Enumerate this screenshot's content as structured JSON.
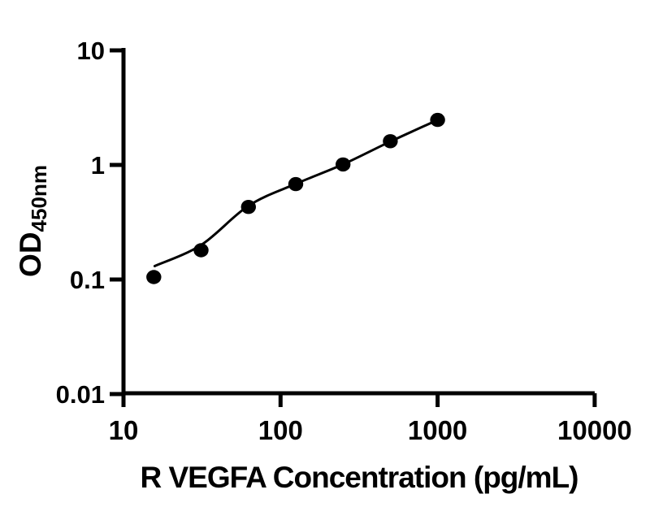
{
  "page": {
    "background": "#ffffff"
  },
  "chart_data": {
    "type": "scatter",
    "title": "",
    "xlabel": "R VEGFA Concentration (pg/mL)",
    "ylabel": "OD450nm",
    "ylabel_main": "OD",
    "ylabel_sub": "450nm",
    "x_scale": "log",
    "y_scale": "log",
    "xlim": [
      10,
      10000
    ],
    "ylim": [
      0.01,
      10
    ],
    "x_ticks": {
      "values": [
        10,
        100,
        1000,
        10000
      ],
      "labels": [
        "10",
        "100",
        "1000",
        "10000"
      ]
    },
    "y_ticks": {
      "values": [
        10,
        1,
        0.1,
        0.01
      ],
      "labels": [
        "10",
        "1",
        "0.1",
        "0.01"
      ]
    },
    "grid": false,
    "legend": null,
    "axis_color": "#000000",
    "text_color": "#000000",
    "background": "#ffffff",
    "series": [
      {
        "name": "standard-points",
        "marker": "circle",
        "color": "#000000",
        "points": [
          {
            "x": 15.6,
            "y": 0.105
          },
          {
            "x": 31.2,
            "y": 0.18
          },
          {
            "x": 62.5,
            "y": 0.43
          },
          {
            "x": 125,
            "y": 0.68
          },
          {
            "x": 250,
            "y": 1.01
          },
          {
            "x": 500,
            "y": 1.61
          },
          {
            "x": 1000,
            "y": 2.47
          }
        ]
      }
    ],
    "fit_curve": {
      "name": "fitted-standard-curve",
      "color": "#000000",
      "points": [
        {
          "x": 15.8,
          "y": 0.131
        },
        {
          "x": 31.2,
          "y": 0.2
        },
        {
          "x": 62.5,
          "y": 0.44
        },
        {
          "x": 125,
          "y": 0.683
        },
        {
          "x": 250,
          "y": 1.012
        },
        {
          "x": 500,
          "y": 1.6
        },
        {
          "x": 1000,
          "y": 2.47
        }
      ]
    }
  }
}
